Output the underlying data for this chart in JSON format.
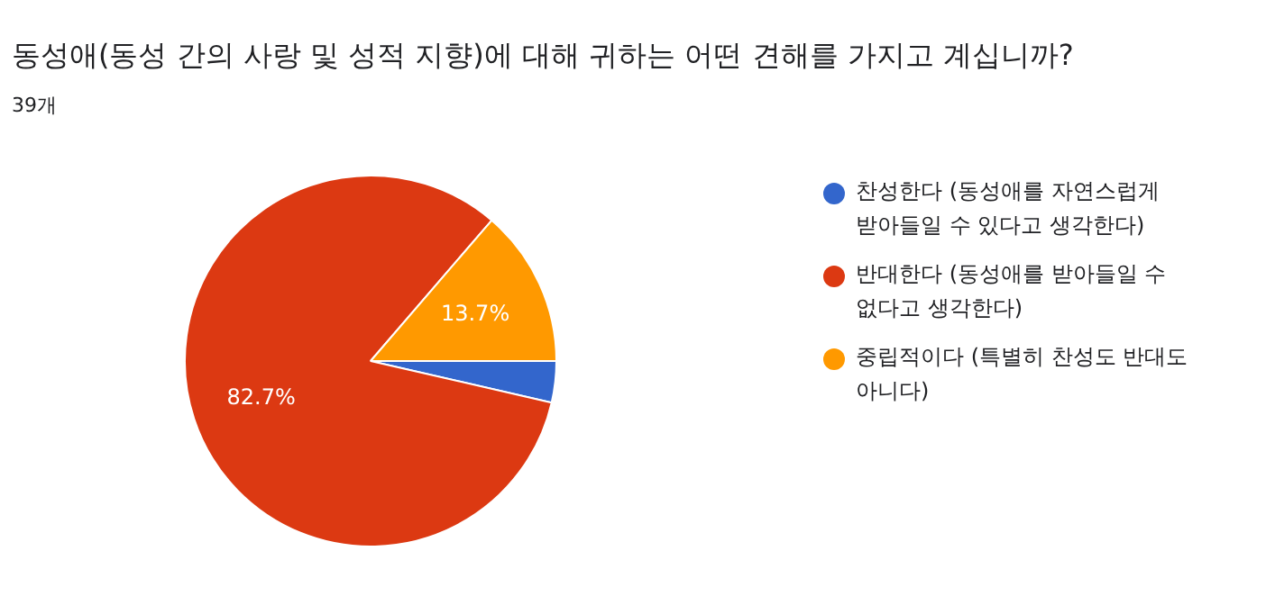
{
  "chart_data": {
    "type": "pie",
    "title": "동성애(동성 간의 사랑 및 성적 지향)에 대해 귀하는 어떤 견해를 가지고 계십니까?",
    "subtitle": "39개",
    "categories": [
      "찬성한다 (동성애를 자연스럽게 받아들일 수 있다고 생각한다)",
      "반대한다 (동성애를 받아들일 수 없다고 생각한다)",
      "중립적이다 (특별히 찬성도 반대도 아니다)"
    ],
    "values": [
      3.6,
      82.7,
      13.7
    ],
    "colors": [
      "#3366cc",
      "#dc3912",
      "#ff9900"
    ],
    "value_labels": [
      null,
      "82.7%",
      "13.7%"
    ],
    "legend": "right"
  }
}
